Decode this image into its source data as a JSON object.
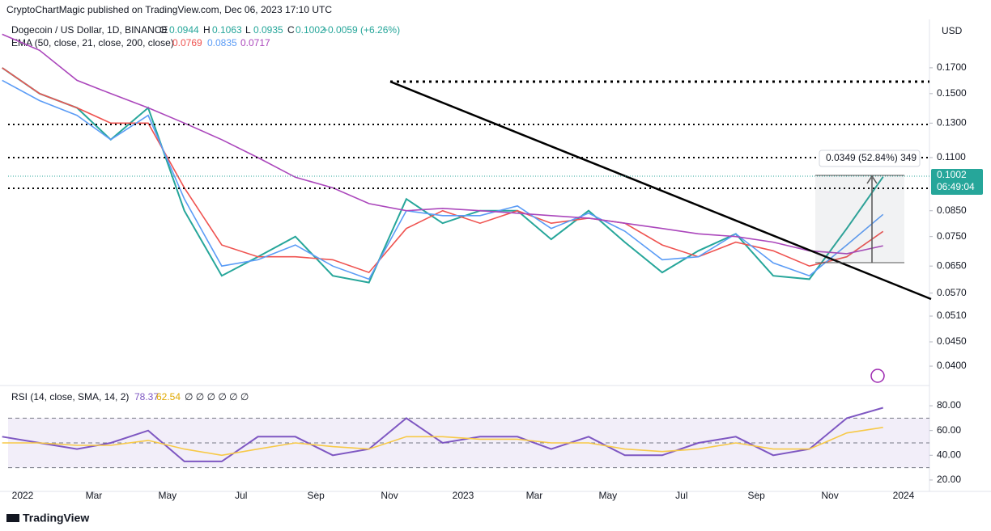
{
  "header": {
    "published": "CryptoChartMagic published on TradingView.com, Dec 06, 2023 17:10 UTC",
    "symbol": "Dogecoin / US Dollar, 1D, BINANCE",
    "o_label": "O",
    "o": "0.0944",
    "h_label": "H",
    "h": "0.1063",
    "l_label": "L",
    "l": "0.0935",
    "c_label": "C",
    "change": "+0.0059 (+6.26%)",
    "ema_label": "EMA (50, close, 21, close, 200, close)",
    "rsi_label": "RSI (14, close, SMA, 14, 2)",
    "rsi_extra": "∅ ∅ ∅ ∅ ∅ ∅",
    "currency": "USD",
    "countdown": "06:49:04",
    "measure": "0.0349 (52.84%) 349",
    "footer": "TradingView"
  },
  "chart_data": [
    {
      "type": "line",
      "log_scale": true,
      "grid": false,
      "x": [
        "2021-12",
        "2022-01",
        "2022-02",
        "2022-03",
        "2022-04",
        "2022-05",
        "2022-06",
        "2022-07",
        "2022-08",
        "2022-09",
        "2022-10",
        "2022-11",
        "2022-12",
        "2023-01",
        "2023-02",
        "2023-03",
        "2023-04",
        "2023-05",
        "2023-06",
        "2023-07",
        "2023-08",
        "2023-09",
        "2023-10",
        "2023-11",
        "2023-12"
      ],
      "series": [
        {
          "color": "#26a69a",
          "values": [
            0.17,
            0.15,
            0.14,
            0.12,
            0.14,
            0.085,
            0.062,
            0.068,
            0.075,
            0.062,
            0.06,
            0.09,
            0.08,
            0.085,
            0.085,
            0.074,
            0.085,
            0.073,
            0.063,
            0.07,
            0.076,
            0.062,
            0.061,
            0.078,
            0.1002
          ]
        },
        {
          "color": "#ef5350",
          "values": [
            0.17,
            0.15,
            0.14,
            0.13,
            0.13,
            0.095,
            0.072,
            0.068,
            0.068,
            0.067,
            0.063,
            0.078,
            0.085,
            0.08,
            0.085,
            0.08,
            0.082,
            0.08,
            0.072,
            0.068,
            0.073,
            0.07,
            0.065,
            0.068,
            0.0769
          ]
        },
        {
          "color": "#5b9cf6",
          "values": [
            0.16,
            0.145,
            0.135,
            0.12,
            0.135,
            0.09,
            0.065,
            0.067,
            0.072,
            0.065,
            0.061,
            0.085,
            0.083,
            0.083,
            0.087,
            0.078,
            0.084,
            0.077,
            0.067,
            0.068,
            0.076,
            0.066,
            0.062,
            0.072,
            0.0835
          ]
        },
        {
          "color": "#ab47bc",
          "values": [
            0.2,
            0.185,
            0.16,
            0.15,
            0.14,
            0.13,
            0.12,
            0.11,
            0.1,
            0.095,
            0.088,
            0.085,
            0.086,
            0.085,
            0.084,
            0.083,
            0.082,
            0.08,
            0.078,
            0.076,
            0.075,
            0.073,
            0.07,
            0.069,
            0.0717
          ]
        }
      ],
      "ylim": [
        0.0367,
        0.21
      ],
      "yticks": [
        {
          "value": 0.17,
          "label": "0.1700"
        },
        {
          "value": 0.15,
          "label": "0.1500"
        },
        {
          "value": 0.13,
          "label": "0.1300"
        },
        {
          "value": 0.11,
          "label": "0.1100"
        },
        {
          "value": 0.085,
          "label": "0.0850"
        },
        {
          "value": 0.075,
          "label": "0.0750"
        },
        {
          "value": 0.065,
          "label": "0.0650"
        },
        {
          "value": 0.057,
          "label": "0.0570"
        },
        {
          "value": 0.051,
          "label": "0.0510"
        },
        {
          "value": 0.045,
          "label": "0.0450"
        },
        {
          "value": 0.04,
          "label": "0.0400"
        }
      ],
      "xticks": [
        {
          "value": "2022-01",
          "label": "2022"
        },
        {
          "value": "2022-03",
          "label": "Mar"
        },
        {
          "value": "2022-05",
          "label": "May"
        },
        {
          "value": "2022-07",
          "label": "Jul"
        },
        {
          "value": "2022-09",
          "label": "Sep"
        },
        {
          "value": "2022-11",
          "label": "Nov"
        },
        {
          "value": "2023-01",
          "label": "2023"
        },
        {
          "value": "2023-03",
          "label": "Mar"
        },
        {
          "value": "2023-05",
          "label": "May"
        },
        {
          "value": "2023-07",
          "label": "Jul"
        },
        {
          "value": "2023-09",
          "label": "Sep"
        },
        {
          "value": "2023-11",
          "label": "Nov"
        },
        {
          "value": "2024-01",
          "label": "2024"
        }
      ]
    },
    {
      "type": "line",
      "grid": false,
      "x": [
        "2021-12",
        "2022-01",
        "2022-02",
        "2022-03",
        "2022-04",
        "2022-05",
        "2022-06",
        "2022-07",
        "2022-08",
        "2022-09",
        "2022-10",
        "2022-11",
        "2022-12",
        "2023-01",
        "2023-02",
        "2023-03",
        "2023-04",
        "2023-05",
        "2023-06",
        "2023-07",
        "2023-08",
        "2023-09",
        "2023-10",
        "2023-11",
        "2023-12"
      ],
      "series": [
        {
          "color": "#7e57c2",
          "values": [
            55,
            50,
            45,
            50,
            60,
            35,
            35,
            55,
            55,
            40,
            45,
            70,
            50,
            55,
            55,
            45,
            55,
            40,
            40,
            50,
            55,
            40,
            45,
            70,
            78.37
          ]
        },
        {
          "color": "#f7c948",
          "values": [
            50,
            50,
            48,
            48,
            52,
            45,
            40,
            45,
            50,
            47,
            45,
            55,
            55,
            53,
            53,
            50,
            50,
            45,
            43,
            45,
            50,
            45,
            45,
            58,
            62.54
          ]
        }
      ],
      "bands": [
        70,
        50,
        30
      ],
      "ylim": [
        10.8,
        95.7
      ],
      "yticks": [
        {
          "value": 80,
          "label": "80.00"
        },
        {
          "value": 60,
          "label": "60.00"
        },
        {
          "value": 40,
          "label": "40.00"
        },
        {
          "value": 20,
          "label": "20.00"
        }
      ]
    }
  ]
}
